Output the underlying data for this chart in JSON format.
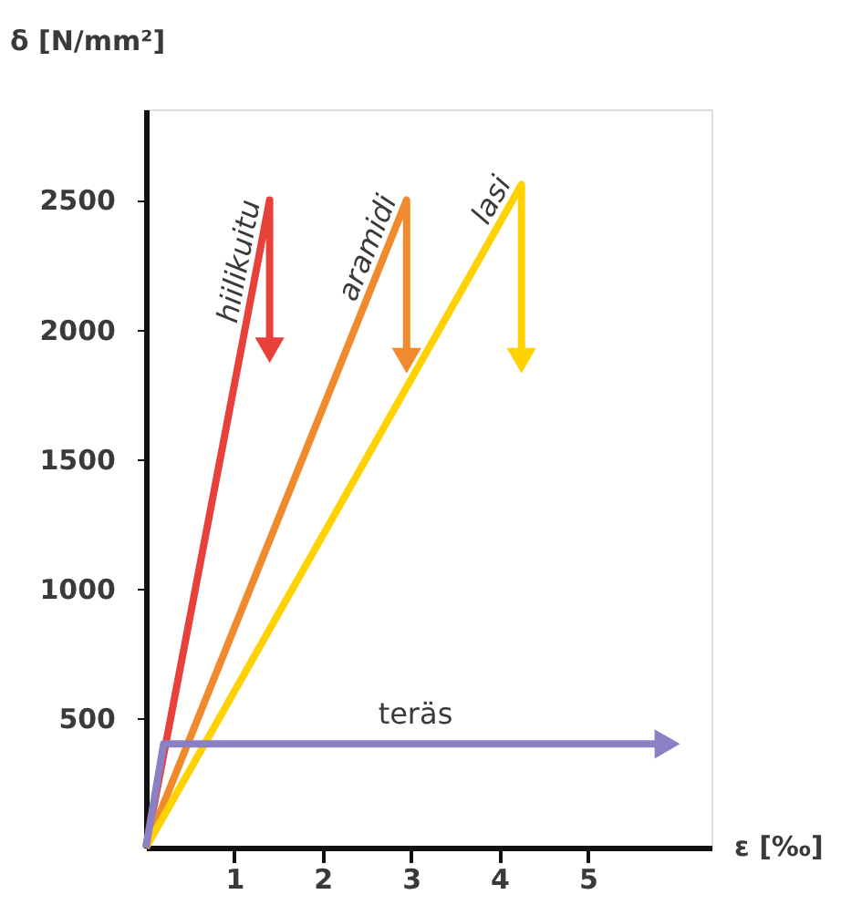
{
  "chart_data": {
    "type": "line",
    "xlabel": "ε [‰]",
    "ylabel": "δ [N/mm²]",
    "xlim": [
      0,
      6.4
    ],
    "ylim": [
      0,
      2850
    ],
    "xticks": [
      1,
      2,
      3,
      4,
      5
    ],
    "yticks": [
      500,
      1000,
      1500,
      2000,
      2500
    ],
    "grid": false,
    "marker": "none",
    "line_style": "solid",
    "series": [
      {
        "name": "hiilikuitu",
        "color": "#e8413c",
        "x": [
          0,
          1.4,
          1.4
        ],
        "values": [
          0,
          2500,
          1920
        ]
      },
      {
        "name": "aramidi",
        "color": "#f08a2c",
        "x": [
          0,
          2.95,
          2.95
        ],
        "values": [
          0,
          2500,
          1880
        ]
      },
      {
        "name": "lasi",
        "color": "#ffd200",
        "x": [
          0,
          4.25,
          4.25
        ],
        "values": [
          0,
          2560,
          1880
        ]
      },
      {
        "name": "teräs",
        "color": "#8a80c4",
        "x": [
          0,
          0.2,
          5.9
        ],
        "values": [
          0,
          400,
          400
        ]
      }
    ]
  }
}
